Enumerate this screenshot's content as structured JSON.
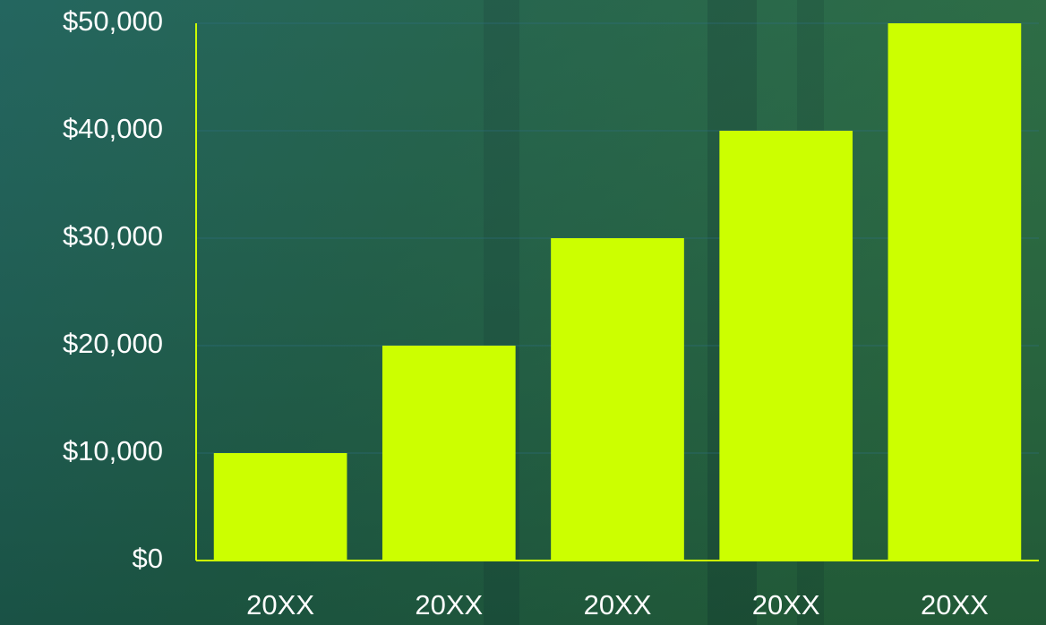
{
  "chart_data": {
    "type": "bar",
    "categories": [
      "20XX",
      "20XX",
      "20XX",
      "20XX",
      "20XX"
    ],
    "values": [
      10000,
      20000,
      30000,
      40000,
      50000
    ],
    "color": "#ccff00",
    "ylim": [
      0,
      50000
    ],
    "yticks": [
      {
        "value": 0,
        "label": "$0"
      },
      {
        "value": 10000,
        "label": "$10,000"
      },
      {
        "value": 20000,
        "label": "$20,000"
      },
      {
        "value": 30000,
        "label": "$30,000"
      },
      {
        "value": 40000,
        "label": "$40,000"
      },
      {
        "value": 50000,
        "label": "$50,000"
      }
    ],
    "grid": true
  }
}
